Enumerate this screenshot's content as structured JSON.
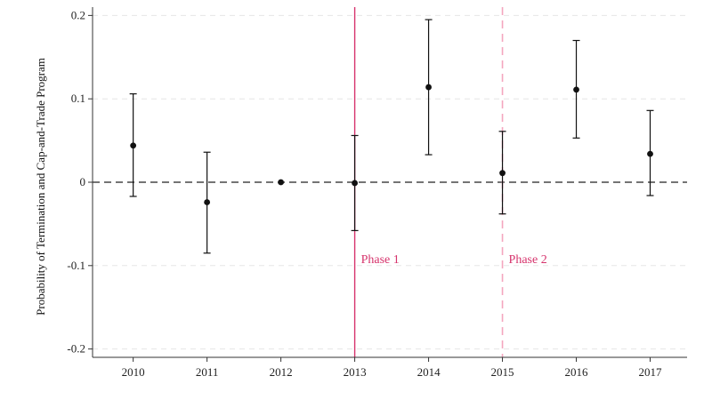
{
  "chart_data": {
    "type": "scatter",
    "title": "",
    "xlabel": "",
    "ylabel": "Probability of Termination and Cap-and-Trade Program",
    "x_ticks": [
      "2010",
      "2011",
      "2012",
      "2013",
      "2014",
      "2015",
      "2016",
      "2017"
    ],
    "y_ticks": [
      {
        "value": 0.2,
        "label": "0.2"
      },
      {
        "value": 0.1,
        "label": "0.1"
      },
      {
        "value": 0,
        "label": "0"
      },
      {
        "value": -0.1,
        "label": "-0.1"
      },
      {
        "value": -0.2,
        "label": "-0.2"
      }
    ],
    "ylim": [
      -0.21,
      0.21
    ],
    "xlim": [
      2009.45,
      2017.5
    ],
    "grid": "horizontal dashed",
    "series": [
      {
        "points": [
          {
            "x": 2010,
            "y": 0.044,
            "ci_low": -0.017,
            "ci_high": 0.106
          },
          {
            "x": 2011,
            "y": -0.024,
            "ci_low": -0.085,
            "ci_high": 0.036
          },
          {
            "x": 2012,
            "y": 0.0,
            "ci_low": null,
            "ci_high": null
          },
          {
            "x": 2013,
            "y": -0.001,
            "ci_low": -0.058,
            "ci_high": 0.056
          },
          {
            "x": 2014,
            "y": 0.114,
            "ci_low": 0.033,
            "ci_high": 0.195
          },
          {
            "x": 2015,
            "y": 0.011,
            "ci_low": -0.038,
            "ci_high": 0.061
          },
          {
            "x": 2016,
            "y": 0.111,
            "ci_low": 0.053,
            "ci_high": 0.17
          },
          {
            "x": 2017,
            "y": 0.034,
            "ci_low": -0.016,
            "ci_high": 0.086
          }
        ]
      }
    ],
    "reference_line": {
      "y": 0,
      "style": "dashed"
    },
    "annotations": [
      {
        "x": 2013,
        "label": "Phase 1",
        "style": "solid",
        "color": "#d6336c"
      },
      {
        "x": 2015,
        "label": "Phase 2",
        "style": "dashed",
        "color": "#f4a6bf"
      }
    ],
    "colors": {
      "points": "#111111",
      "phase_text": "#d6336c",
      "grid": "#e6e6e6"
    }
  }
}
